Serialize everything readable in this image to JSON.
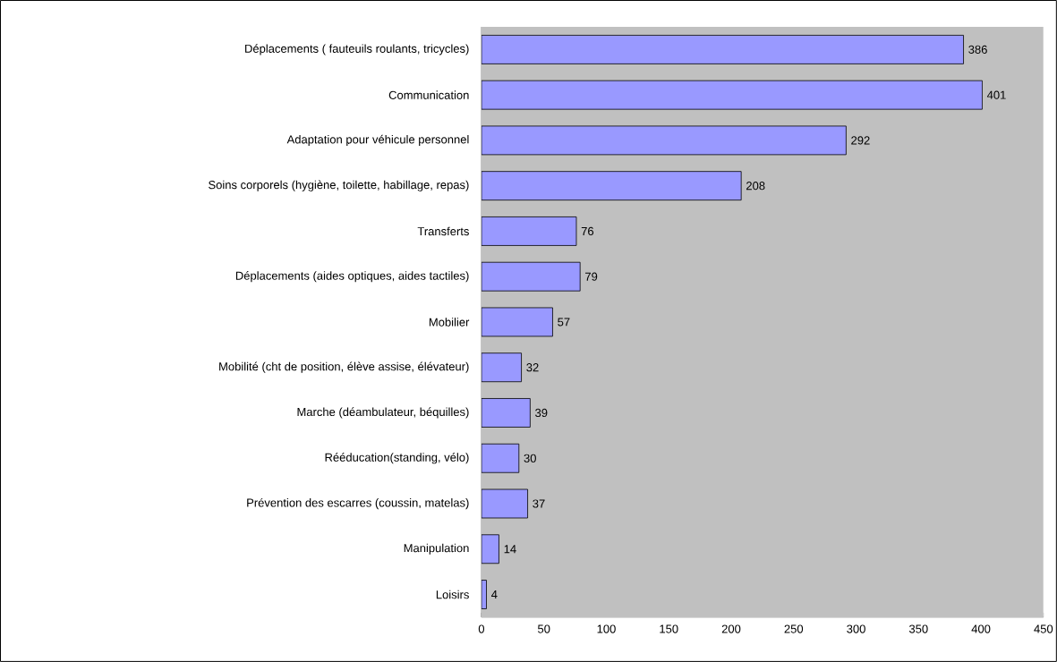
{
  "chart_data": {
    "type": "bar",
    "orientation": "horizontal",
    "categories": [
      "Déplacements ( fauteuils roulants, tricycles)",
      "Communication",
      "Adaptation pour véhicule personnel",
      "Soins corporels (hygiène, toilette, habillage, repas)",
      "Transferts",
      "Déplacements (aides optiques, aides tactiles)",
      "Mobilier",
      "Mobilité (cht de position, élève assise, élévateur)",
      "Marche (déambulateur, béquilles)",
      "Rééducation(standing, vélo)",
      "Prévention des escarres (coussin, matelas)",
      "Manipulation",
      "Loisirs"
    ],
    "values": [
      386,
      401,
      292,
      208,
      76,
      79,
      57,
      32,
      39,
      30,
      37,
      14,
      4
    ],
    "color": "#9999ff",
    "xlim": [
      0,
      450
    ],
    "xticks": [
      0,
      50,
      100,
      150,
      200,
      250,
      300,
      350,
      400,
      450
    ],
    "data_labels": true
  }
}
